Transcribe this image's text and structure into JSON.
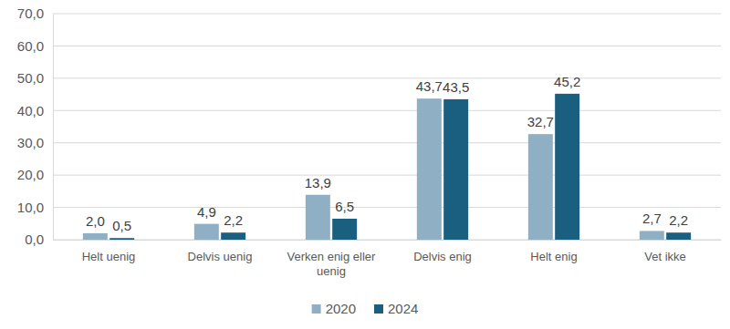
{
  "chart_data": {
    "type": "bar",
    "categories": [
      "Helt uenig",
      "Delvis uenig",
      "Verken enig eller uenig",
      "Delvis enig",
      "Helt enig",
      "Vet ikke"
    ],
    "series": [
      {
        "name": "2020",
        "color": "#8FB0C4",
        "values": [
          2.0,
          4.9,
          13.9,
          43.7,
          32.7,
          2.7
        ],
        "value_labels": [
          "2,0",
          "4,9",
          "13,9",
          "43,7",
          "32,7",
          "2,7"
        ]
      },
      {
        "name": "2024",
        "color": "#1A5F80",
        "values": [
          0.5,
          2.2,
          6.5,
          43.5,
          45.2,
          2.2
        ],
        "value_labels": [
          "0,5",
          "2,2",
          "6,5",
          "43,5",
          "45,2",
          "2,2"
        ]
      }
    ],
    "ylim": [
      0,
      70
    ],
    "yticks": [
      {
        "value": 0,
        "label": "0,0"
      },
      {
        "value": 10,
        "label": "10,0"
      },
      {
        "value": 20,
        "label": "20,0"
      },
      {
        "value": 30,
        "label": "30,0"
      },
      {
        "value": 40,
        "label": "40,0"
      },
      {
        "value": 50,
        "label": "50,0"
      },
      {
        "value": 60,
        "label": "60,0"
      },
      {
        "value": 70,
        "label": "70,0"
      }
    ],
    "grid": true,
    "data_labels": true,
    "legend": "bottom"
  }
}
